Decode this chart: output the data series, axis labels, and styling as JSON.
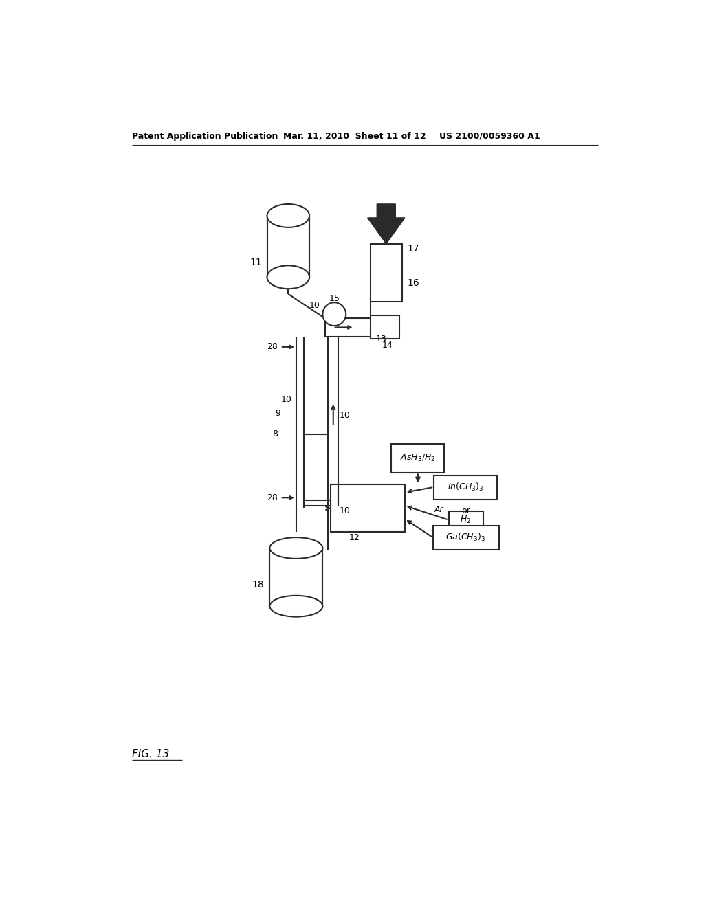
{
  "bg_color": "#ffffff",
  "line_color": "#2a2a2a",
  "header_left": "Patent Application Publication",
  "header_mid": "Mar. 11, 2010  Sheet 11 of 12",
  "header_right": "US 2100/0059360 A1",
  "fig_label": "FIG. 13"
}
